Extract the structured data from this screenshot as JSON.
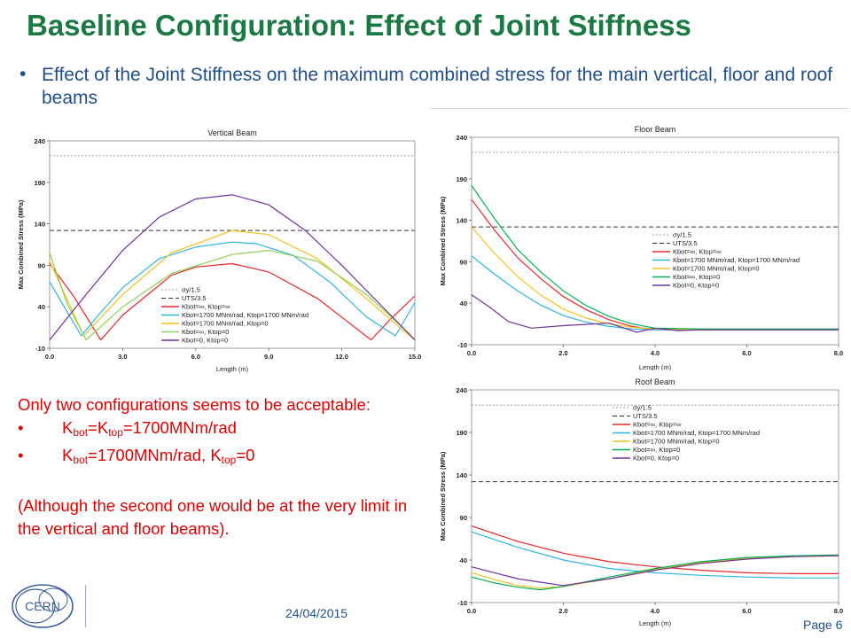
{
  "slide": {
    "title": "Baseline Configuration: Effect of Joint Stiffness",
    "bullet_dot": "•",
    "bullet": "Effect of the Joint Stiffness on the maximum combined stress for the main vertical, floor and roof beams",
    "note_intro": "Only two configurations seems to be acceptable:",
    "note_items": [
      {
        "a": "K",
        "s1": "bot",
        "b": "=K",
        "s2": "top",
        "c": "=1700MNm/rad"
      },
      {
        "a": "K",
        "s1": "bot",
        "b": "=1700MNm/rad, K",
        "s2": "top",
        "c": "=0"
      }
    ],
    "note_bullet": "•",
    "note_tail": "(Although the second one would be at the very limit in the vertical and floor beams).",
    "date": "24/04/2015",
    "page": "Page 6",
    "logo_text": "CERN"
  },
  "chart_data": [
    {
      "type": "line",
      "title": "Vertical Beam",
      "xlabel": "Length (m)",
      "ylabel": "Max Combined Stress (MPa)",
      "xlim": [
        0,
        15
      ],
      "ylim": [
        -10,
        240
      ],
      "xticks": [
        "0.0",
        "3.0",
        "6.0",
        "9.0",
        "12.0",
        "15.0"
      ],
      "yticks": [
        "-10",
        "40",
        "90",
        "140",
        "190",
        "240"
      ],
      "grid": false,
      "legend_position": "bottom-left",
      "hlines": [
        {
          "name": "σy/1.5",
          "y": 222,
          "color": "#a0a0a0",
          "dash": "2,2"
        },
        {
          "name": "UTS/3.5",
          "y": 132,
          "color": "#333333",
          "dash": "5,3"
        }
      ],
      "series": [
        {
          "name": "Kbot=∞, Ktop=∞",
          "color": "#e8262a",
          "x": [
            0,
            1,
            2.1,
            3,
            5,
            6,
            7.5,
            9,
            11,
            13.2,
            14,
            15
          ],
          "y": [
            92,
            52,
            0,
            30,
            78,
            88,
            92,
            82,
            50,
            0,
            25,
            53
          ]
        },
        {
          "name": "Kbot=1700 MNm/rad, Ktop=1700 MNm/rad",
          "color": "#2bb5e6",
          "x": [
            0,
            0.7,
            1.3,
            2,
            3,
            4.5,
            6,
            7.5,
            8.5,
            10,
            11.5,
            13,
            14.2,
            15
          ],
          "y": [
            70,
            35,
            5,
            30,
            63,
            98,
            112,
            118,
            116,
            102,
            70,
            28,
            5,
            45
          ]
        },
        {
          "name": "Kbot=1700 MNm/rad, Ktop=0",
          "color": "#f5c11e",
          "x": [
            0,
            0.7,
            1.4,
            3,
            5,
            7.5,
            9,
            11,
            13,
            14.5,
            15
          ],
          "y": [
            95,
            50,
            5,
            55,
            105,
            132,
            127,
            98,
            50,
            12,
            0
          ]
        },
        {
          "name": "Kbot=∞, Ktop=0",
          "color": "#92d050",
          "x": [
            0,
            0.7,
            1.5,
            3,
            5,
            7.5,
            9,
            11,
            13,
            14.5,
            15
          ],
          "y": [
            105,
            45,
            0,
            40,
            80,
            103,
            108,
            95,
            55,
            15,
            0
          ]
        },
        {
          "name": "Kbot=0, Ktop=0",
          "color": "#7030a0",
          "x": [
            0,
            1.5,
            3,
            4.5,
            6,
            7.5,
            9,
            10.5,
            12,
            13.5,
            15
          ],
          "y": [
            0,
            55,
            108,
            148,
            170,
            175,
            163,
            132,
            90,
            45,
            0
          ]
        }
      ]
    },
    {
      "type": "line",
      "title": "Floor Beam",
      "xlabel": "Length (m)",
      "ylabel": "Max Combined Stress (MPa)",
      "xlim": [
        0,
        8
      ],
      "ylim": [
        -10,
        240
      ],
      "xticks": [
        "0.0",
        "2.0",
        "4.0",
        "6.0",
        "8.0"
      ],
      "yticks": [
        "-10",
        "40",
        "90",
        "140",
        "190",
        "240"
      ],
      "grid": false,
      "legend_position": "center-right",
      "hlines": [
        {
          "name": "σy/1.5",
          "y": 222,
          "color": "#a0a0a0",
          "dash": "2,2"
        },
        {
          "name": "UTS/3.5",
          "y": 132,
          "color": "#333333",
          "dash": "5,3"
        }
      ],
      "series": [
        {
          "name": "Kbot=∞, Ktop=∞",
          "color": "#e8262a",
          "x": [
            0,
            0.5,
            1,
            1.5,
            2,
            2.5,
            3,
            3.5,
            4,
            5,
            6,
            7,
            8
          ],
          "y": [
            165,
            128,
            95,
            70,
            48,
            32,
            20,
            12,
            8,
            8,
            8,
            8,
            8
          ]
        },
        {
          "name": "Kbot=1700 MNm/rad, Ktop=1700 MNm/rad",
          "color": "#2bb5e6",
          "x": [
            0,
            0.5,
            1,
            1.5,
            2,
            2.5,
            3,
            3.5,
            4,
            5,
            6,
            7,
            8
          ],
          "y": [
            97,
            75,
            55,
            38,
            25,
            17,
            12,
            9,
            8,
            8,
            8,
            8,
            8
          ]
        },
        {
          "name": "Kbot=1700 MNm/rad, Ktop=0",
          "color": "#f5c11e",
          "x": [
            0,
            0.5,
            1,
            1.5,
            2,
            2.5,
            3,
            3.5,
            4,
            5,
            6,
            7,
            8
          ],
          "y": [
            132,
            100,
            72,
            50,
            33,
            22,
            15,
            11,
            9,
            8,
            8,
            8,
            8
          ]
        },
        {
          "name": "Kbot=∞, Ktop=0",
          "color": "#00b050",
          "x": [
            0,
            0.5,
            1,
            1.5,
            2,
            2.5,
            3,
            3.5,
            4,
            5,
            6,
            7,
            8
          ],
          "y": [
            182,
            142,
            105,
            78,
            55,
            37,
            24,
            15,
            10,
            9,
            9,
            9,
            9
          ]
        },
        {
          "name": "Kbot=0, Ktop=0",
          "color": "#7030a0",
          "x": [
            0,
            0.4,
            0.8,
            1.3,
            2,
            3,
            3.6,
            4,
            4.5,
            5,
            6,
            7,
            8
          ],
          "y": [
            50,
            35,
            18,
            10,
            13,
            16,
            5,
            10,
            7,
            8,
            8,
            8,
            8
          ]
        }
      ]
    },
    {
      "type": "line",
      "title": "Roof Beam",
      "xlabel": "Length (m)",
      "ylabel": "Max Combined Stress (MPa)",
      "xlim": [
        0,
        8
      ],
      "ylim": [
        -10,
        240
      ],
      "xticks": [
        "0.0",
        "2.0",
        "4.0",
        "6.0",
        "8.0"
      ],
      "yticks": [
        "-10",
        "40",
        "90",
        "140",
        "190",
        "240"
      ],
      "grid": false,
      "legend_position": "top-left",
      "hlines": [
        {
          "name": "σy/1.5",
          "y": 222,
          "color": "#a0a0a0",
          "dash": "2,2"
        },
        {
          "name": "UTS/3.5",
          "y": 132,
          "color": "#333333",
          "dash": "5,3"
        }
      ],
      "series": [
        {
          "name": "Kbot=∞, Ktop=∞",
          "color": "#e8262a",
          "x": [
            0,
            1,
            2,
            3,
            4,
            5,
            6,
            7,
            8
          ],
          "y": [
            80,
            62,
            48,
            38,
            32,
            28,
            25,
            24,
            24
          ]
        },
        {
          "name": "Kbot=1700 MNm/rad, Ktop=1700 MNm/rad",
          "color": "#2bb5e6",
          "x": [
            0,
            1,
            2,
            3,
            4,
            5,
            6,
            7,
            8
          ],
          "y": [
            73,
            55,
            40,
            30,
            25,
            22,
            20,
            19,
            19
          ]
        },
        {
          "name": "Kbot=1700 MNm/rad, Ktop=0",
          "color": "#f5c11e",
          "x": [
            0,
            0.5,
            1,
            1.5,
            2,
            3,
            4,
            5,
            6,
            7,
            8
          ],
          "y": [
            25,
            17,
            10,
            7,
            9,
            18,
            29,
            37,
            42,
            44,
            45
          ]
        },
        {
          "name": "Kbot=∞, Ktop=0",
          "color": "#00b050",
          "x": [
            0,
            0.5,
            1,
            1.5,
            2,
            3,
            4,
            5,
            6,
            7,
            8
          ],
          "y": [
            20,
            13,
            8,
            5,
            9,
            20,
            30,
            38,
            43,
            45,
            46
          ]
        },
        {
          "name": "Kbot=0, Ktop=0",
          "color": "#7030a0",
          "x": [
            0,
            0.5,
            1,
            1.5,
            2,
            3,
            4,
            5,
            6,
            7,
            8
          ],
          "y": [
            32,
            25,
            18,
            14,
            10,
            18,
            28,
            36,
            41,
            44,
            45
          ]
        }
      ]
    }
  ]
}
